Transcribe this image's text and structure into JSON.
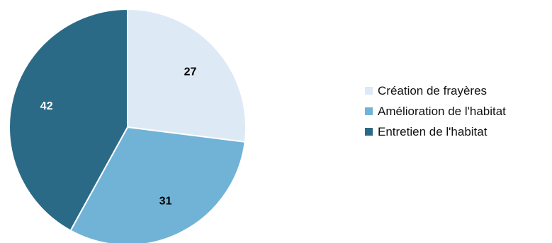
{
  "chart_data": {
    "type": "pie",
    "title": "",
    "categories": [
      "Création de frayères",
      "Amélioration de l'habitat",
      "Entretien de l'habitat"
    ],
    "values": [
      27,
      31,
      42
    ],
    "data_labels": [
      "27",
      "31",
      "42"
    ],
    "colors": [
      "#dde9f5",
      "#70b3d6",
      "#2b6a87"
    ],
    "label_colors": [
      "#000000",
      "#000000",
      "#ffffff"
    ],
    "start_angle_deg": 0,
    "direction": "clockwise",
    "legend_position": "right"
  }
}
